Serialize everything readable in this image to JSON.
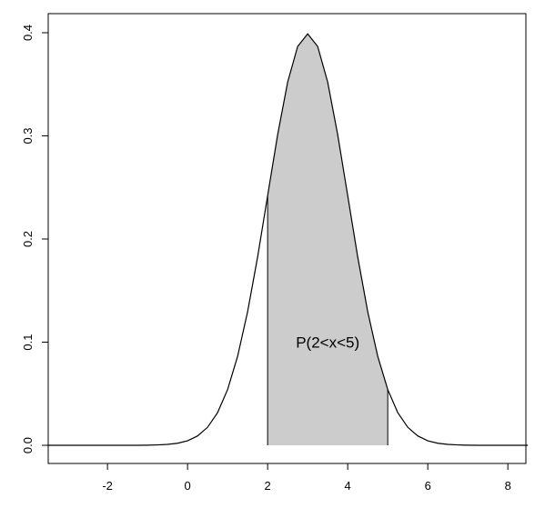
{
  "chart_data": {
    "type": "line",
    "x": [
      -3.5,
      -3.25,
      -3,
      -2.75,
      -2.5,
      -2.25,
      -2,
      -1.75,
      -1.5,
      -1.25,
      -1,
      -0.75,
      -0.5,
      -0.25,
      0,
      0.25,
      0.5,
      0.75,
      1,
      1.25,
      1.5,
      1.75,
      2,
      2.25,
      2.5,
      2.75,
      3,
      3.25,
      3.5,
      3.75,
      4,
      4.25,
      4.5,
      4.75,
      5,
      5.25,
      5.5,
      5.75,
      6,
      6.25,
      6.5,
      6.75,
      7,
      7.25,
      7.5,
      7.75,
      8,
      8.25,
      8.5
    ],
    "series": [
      {
        "color": "#000000",
        "values": [
          0,
          0,
          0,
          0,
          0,
          0,
          0,
          0,
          0,
          0,
          0.0001,
          0.0004,
          0.0009,
          0.002,
          0.0044,
          0.0091,
          0.0175,
          0.0317,
          0.054,
          0.0863,
          0.1295,
          0.1826,
          0.242,
          0.3011,
          0.3521,
          0.3867,
          0.3989,
          0.3867,
          0.3521,
          0.3011,
          0.242,
          0.1826,
          0.1295,
          0.0863,
          0.054,
          0.0317,
          0.0175,
          0.0091,
          0.0044,
          0.002,
          0.0009,
          0.0004,
          0.0001,
          0,
          0,
          0,
          0,
          0,
          0
        ]
      }
    ],
    "shade": {
      "from": 2,
      "to": 5,
      "color": "#cccccc"
    },
    "annotation": {
      "text": "P(2<x<5)",
      "x": 3.5,
      "y": 0.1
    },
    "xlim": [
      -3.48,
      8.45
    ],
    "ylim": [
      -0.0176,
      0.4185
    ],
    "xticks": [
      -2,
      0,
      2,
      4,
      6,
      8
    ],
    "yticks": [
      {
        "value": 0,
        "label": "0.0"
      },
      0.1,
      0.2,
      0.3,
      0.4
    ]
  }
}
